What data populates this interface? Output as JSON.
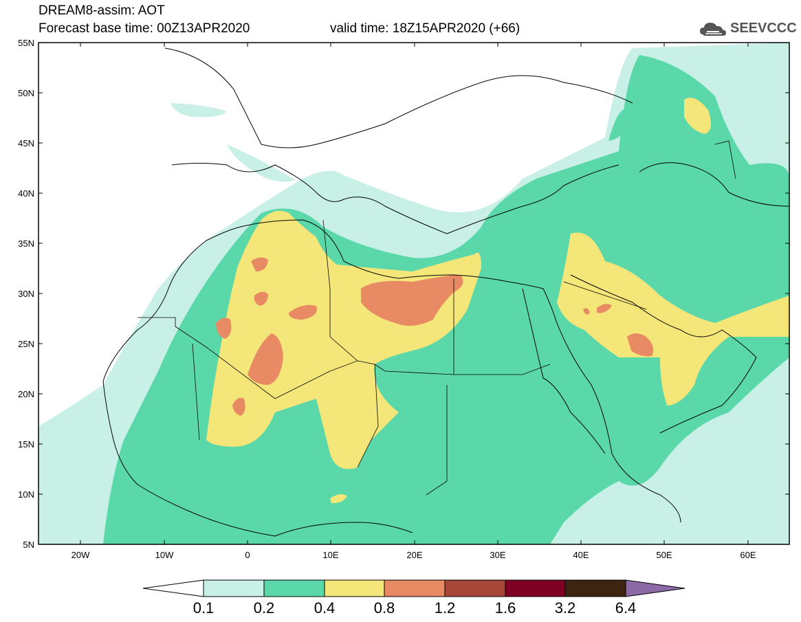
{
  "header": {
    "title": "DREAM8-assim: AOT",
    "base_time": "Forecast base time: 00Z13APR2020",
    "valid_time": "valid time: 18Z15APR2020 (+66)",
    "logo_text": "SEEVCCC"
  },
  "axes": {
    "lon_labels": [
      "20W",
      "10W",
      "0",
      "10E",
      "20E",
      "30E",
      "40E",
      "50E",
      "60E"
    ],
    "lat_labels": [
      "55N",
      "50N",
      "45N",
      "40N",
      "35N",
      "30N",
      "25N",
      "20N",
      "15N",
      "10N",
      "5N"
    ]
  },
  "colorbar": {
    "labels": [
      "0.1",
      "0.2",
      "0.4",
      "0.8",
      "1.2",
      "1.6",
      "3.2",
      "6.4"
    ],
    "colors": [
      "#c8f0e6",
      "#5ad8aa",
      "#f5e67a",
      "#e88a64",
      "#a8463a",
      "#7e0022",
      "#3c2410",
      "#8c6aa8"
    ]
  },
  "legend_colors": {
    "c1": "#c8f0e6",
    "c2": "#5ad8aa",
    "c3": "#f5e67a",
    "c4": "#e88a64"
  }
}
